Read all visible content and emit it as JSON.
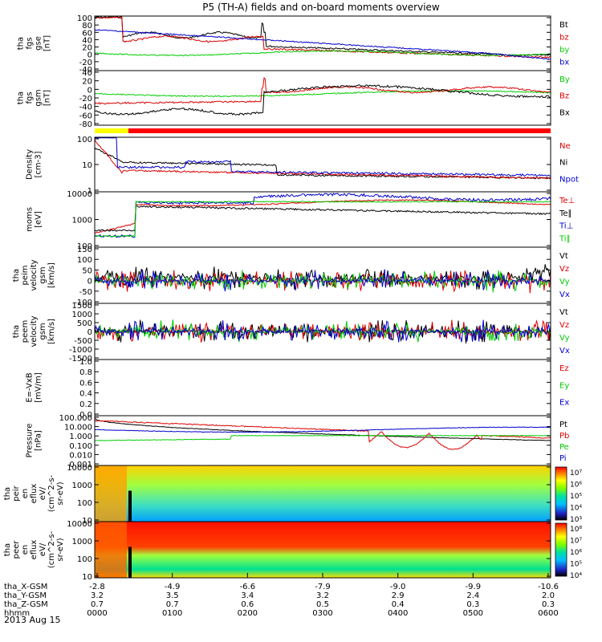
{
  "title": "P5 (TH-A) fields and on-board moments overview",
  "colors": {
    "black": "#000000",
    "red": "#dd0000",
    "green": "#00cc00",
    "blue": "#0000cc",
    "yellow": "#ffff00"
  },
  "chart_data": {
    "type": "line",
    "panels": [
      {
        "ylabel": [
          "tha",
          "fgs",
          "gse",
          "[nT]"
        ],
        "ticks": [
          "100",
          "80",
          "60",
          "40",
          "20",
          "0",
          "-20",
          "-40"
        ],
        "ylim": [
          -40,
          100
        ],
        "legend": [
          {
            "t": "Bt",
            "c": "black"
          },
          {
            "t": "bz",
            "c": "red"
          },
          {
            "t": "by",
            "c": "green"
          },
          {
            "t": "bx",
            "c": "blue"
          }
        ]
      },
      {
        "ylabel": [
          "tha",
          "fgs",
          "gsm",
          "[nT]"
        ],
        "ticks": [
          "40",
          "20",
          "0",
          "-20",
          "-40",
          "-60",
          "-80"
        ],
        "ylim": [
          -80,
          40
        ],
        "legend": [
          {
            "t": "By",
            "c": "green"
          },
          {
            "t": "Bz",
            "c": "red"
          },
          {
            "t": "Bx",
            "c": "black"
          }
        ]
      },
      {
        "ylabel": [
          "Density",
          "[cm-3]"
        ],
        "ticks": [
          "100",
          "10",
          "1"
        ],
        "log": true,
        "ylim": [
          0.3,
          200
        ],
        "legend": [
          {
            "t": "Ne",
            "c": "red"
          },
          {
            "t": "Ni",
            "c": "black"
          },
          {
            "t": "Npot",
            "c": "blue"
          }
        ]
      },
      {
        "ylabel": [
          "moms",
          "[eV]"
        ],
        "ticks": [
          "10000",
          "1000",
          "100"
        ],
        "log": true,
        "ylim": [
          50,
          30000
        ],
        "legend": [
          {
            "t": "Te⊥",
            "c": "red"
          },
          {
            "t": "Te∥",
            "c": "black"
          },
          {
            "t": "Ti⊥",
            "c": "blue"
          },
          {
            "t": "Ti∥",
            "c": "green"
          }
        ]
      },
      {
        "ylabel": [
          "tha",
          "peim",
          "velocity",
          "gsm",
          "[km/s]"
        ],
        "ticks": [
          "150",
          "100",
          "50",
          "0",
          "-50",
          "-100"
        ],
        "ylim": [
          -100,
          150
        ],
        "legend": [
          {
            "t": "Vt",
            "c": "black"
          },
          {
            "t": "Vz",
            "c": "red"
          },
          {
            "t": "Vy",
            "c": "green"
          },
          {
            "t": "Vx",
            "c": "blue"
          }
        ]
      },
      {
        "ylabel": [
          "tha",
          "peem",
          "velocity",
          "gsm",
          "[km/s]"
        ],
        "ticks": [
          "1500",
          "1000",
          "500",
          "0",
          "-500",
          "-1000",
          "-1500"
        ],
        "ylim": [
          -1500,
          1500
        ],
        "legend": [
          {
            "t": "Vt",
            "c": "black"
          },
          {
            "t": "Vz",
            "c": "red"
          },
          {
            "t": "Vy",
            "c": "green"
          },
          {
            "t": "Vx",
            "c": "blue"
          }
        ]
      },
      {
        "ylabel": [
          "E=-VxB",
          "[mV/m]"
        ],
        "ticks": [
          "1.0",
          "0.8",
          "0.6",
          "0.4",
          "0.2",
          "0.0"
        ],
        "ylim": [
          0,
          1
        ],
        "legend": [
          {
            "t": "Ez",
            "c": "red"
          },
          {
            "t": "Ey",
            "c": "green"
          },
          {
            "t": "Ex",
            "c": "blue"
          }
        ]
      },
      {
        "ylabel": [
          "Pressure",
          "[nPa]"
        ],
        "ticks": [
          "100.000",
          "10.000",
          "1.000",
          "0.100",
          "0.010",
          "0.001"
        ],
        "log": true,
        "ylim": [
          0.001,
          100
        ],
        "legend": [
          {
            "t": "Pt",
            "c": "black"
          },
          {
            "t": "Pb",
            "c": "red"
          },
          {
            "t": "Pe",
            "c": "green"
          },
          {
            "t": "Pi",
            "c": "blue"
          }
        ]
      },
      {
        "ylabel": [
          "tha",
          "peir",
          "en",
          "eflux",
          "eV/",
          "(cm^2-s-",
          "sr-eV)"
        ],
        "ticks": [
          "10000",
          "1000",
          "100",
          "10"
        ],
        "log": true,
        "colorbar": [
          "10⁷",
          "10⁶",
          "10⁵",
          "10⁴",
          "10³"
        ]
      },
      {
        "ylabel": [
          "tha",
          "peer",
          "en",
          "eflux",
          "eV/",
          "(cm^2-s-",
          "sr-eV)"
        ],
        "ticks": [
          "10000",
          "1000",
          "100",
          "10"
        ],
        "log": true,
        "colorbar": [
          "10⁸",
          "10⁷",
          "10⁶",
          "10⁵",
          "10⁴"
        ]
      }
    ],
    "x_rows": [
      {
        "label": "tha_X-GSM",
        "values": [
          "-2.8",
          "-4.9",
          "-6.6",
          "-7.9",
          "-9.0",
          "-9.9",
          "-10.6"
        ]
      },
      {
        "label": "tha_Y-GSM",
        "values": [
          "3.2",
          "3.5",
          "3.4",
          "3.2",
          "2.9",
          "2.4",
          "2.0"
        ]
      },
      {
        "label": "tha_Z-GSM",
        "values": [
          "0.7",
          "0.7",
          "0.6",
          "0.5",
          "0.4",
          "0.3",
          "0.3"
        ]
      },
      {
        "label": "hhmm",
        "values": [
          "0000",
          "0100",
          "0200",
          "0300",
          "0400",
          "0500",
          "0600"
        ]
      }
    ],
    "date": "2013 Aug 15"
  }
}
